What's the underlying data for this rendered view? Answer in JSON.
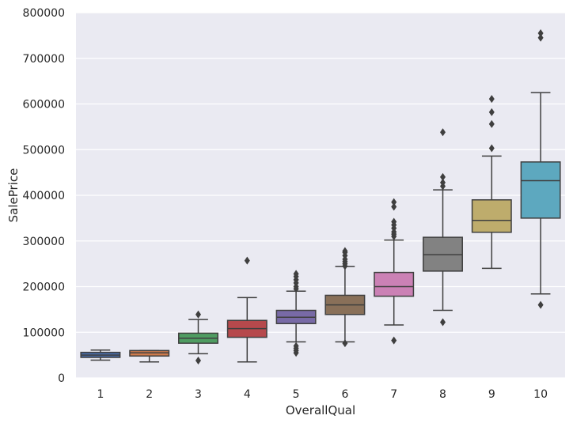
{
  "chart_data": {
    "type": "box",
    "xlabel": "OverallQual",
    "ylabel": "SalePrice",
    "ylim": [
      0,
      800000
    ],
    "yticks": [
      "0",
      "100000",
      "200000",
      "300000",
      "400000",
      "500000",
      "600000",
      "700000",
      "800000"
    ],
    "grid": true,
    "categories": [
      "1",
      "2",
      "3",
      "4",
      "5",
      "6",
      "7",
      "8",
      "9",
      "10"
    ],
    "boxes": [
      {
        "category": "1",
        "color": "#4c72b0",
        "whisker_low": 39000,
        "q1": 45000,
        "median": 50000,
        "q3": 56000,
        "whisker_high": 61000,
        "outliers": []
      },
      {
        "category": "2",
        "color": "#dd8452",
        "whisker_low": 35000,
        "q1": 48000,
        "median": 55000,
        "q3": 60000,
        "whisker_high": 60000,
        "outliers": []
      },
      {
        "category": "3",
        "color": "#55a868",
        "whisker_low": 53000,
        "q1": 76000,
        "median": 87000,
        "q3": 98000,
        "whisker_high": 128000,
        "outliers": [
          38000,
          139000
        ]
      },
      {
        "category": "4",
        "color": "#c44e52",
        "whisker_low": 35000,
        "q1": 89000,
        "median": 108000,
        "q3": 126000,
        "whisker_high": 176000,
        "outliers": [
          257000
        ]
      },
      {
        "category": "5",
        "color": "#8172b3",
        "whisker_low": 79000,
        "q1": 119000,
        "median": 133000,
        "q3": 148000,
        "whisker_high": 190000,
        "outliers": [
          55000,
          60000,
          65000,
          70000,
          195000,
          200000,
          208000,
          215000,
          222000,
          228000
        ]
      },
      {
        "category": "6",
        "color": "#937860",
        "whisker_low": 79000,
        "q1": 139000,
        "median": 160000,
        "q3": 181000,
        "whisker_high": 244000,
        "outliers": [
          76000,
          245000,
          250000,
          255000,
          260000,
          268000,
          275000,
          278000
        ]
      },
      {
        "category": "7",
        "color": "#da8bc3",
        "whisker_low": 116000,
        "q1": 179000,
        "median": 200000,
        "q3": 231000,
        "whisker_high": 302000,
        "outliers": [
          82000,
          310000,
          315000,
          320000,
          328000,
          335000,
          342000,
          375000,
          385000
        ]
      },
      {
        "category": "8",
        "color": "#8c8c8c",
        "whisker_low": 148000,
        "q1": 234000,
        "median": 270000,
        "q3": 308000,
        "whisker_high": 412000,
        "outliers": [
          122000,
          420000,
          428000,
          440000,
          538000
        ]
      },
      {
        "category": "9",
        "color": "#ccb974",
        "whisker_low": 240000,
        "q1": 319000,
        "median": 345000,
        "q3": 390000,
        "whisker_high": 486000,
        "outliers": [
          503000,
          556000,
          582000,
          611000
        ]
      },
      {
        "category": "10",
        "color": "#64b5cd",
        "whisker_low": 184000,
        "q1": 350000,
        "median": 432000,
        "q3": 473000,
        "whisker_high": 625000,
        "outliers": [
          160000,
          745000,
          755000
        ]
      }
    ]
  }
}
